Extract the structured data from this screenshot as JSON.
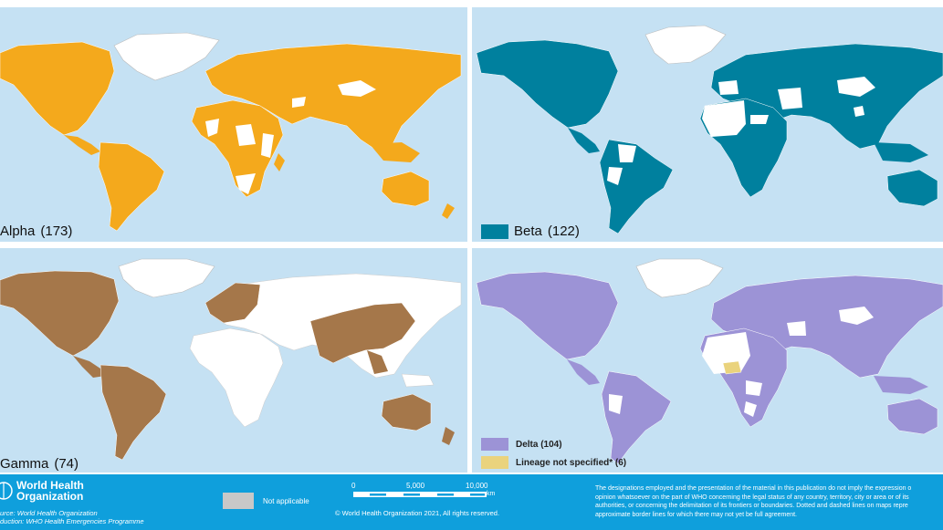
{
  "colors": {
    "ocean": "#c5e1f3",
    "alpha": "#f4a91c",
    "beta": "#00809e",
    "gamma": "#a5774a",
    "delta": "#9c93d6",
    "delta_unspecified": "#ead37d",
    "not_applicable": "#c8c8c8",
    "no_data": "#ffffff",
    "footer": "#0f9fdc"
  },
  "panels": {
    "alpha": {
      "variant": "Alpha",
      "count": "(173)"
    },
    "beta": {
      "variant": "Beta",
      "count": "(122)"
    },
    "gamma": {
      "variant": "Gamma",
      "count": "(74)"
    },
    "delta": {
      "legend": [
        {
          "label": "Delta (104)"
        },
        {
          "label": "Lineage not specified* (6)"
        }
      ]
    }
  },
  "footer": {
    "org_line1": "World Health",
    "org_line2": "Organization",
    "source_line1": "urce: World Health Organization",
    "source_line2": "duction: WHO Health Emergencies Programme",
    "not_applicable": "Not applicable",
    "scale": {
      "t0": "0",
      "t1": "5,000",
      "t2": "10,000",
      "unit": "km"
    },
    "copyright": "© World Health Organization  2021,  All rights reserved.",
    "disclaimer": [
      "The designations employed and the presentation of the material in this publication do not imply the expression o",
      "opinion whatsoever on the part of WHO concerning the legal status of any country, territory, city or area or of its",
      "authorities, or concerning the delimitation of its frontiers or boundaries. Dotted and dashed lines on maps repre",
      "approximate border lines for which there may not yet be full agreement."
    ]
  }
}
